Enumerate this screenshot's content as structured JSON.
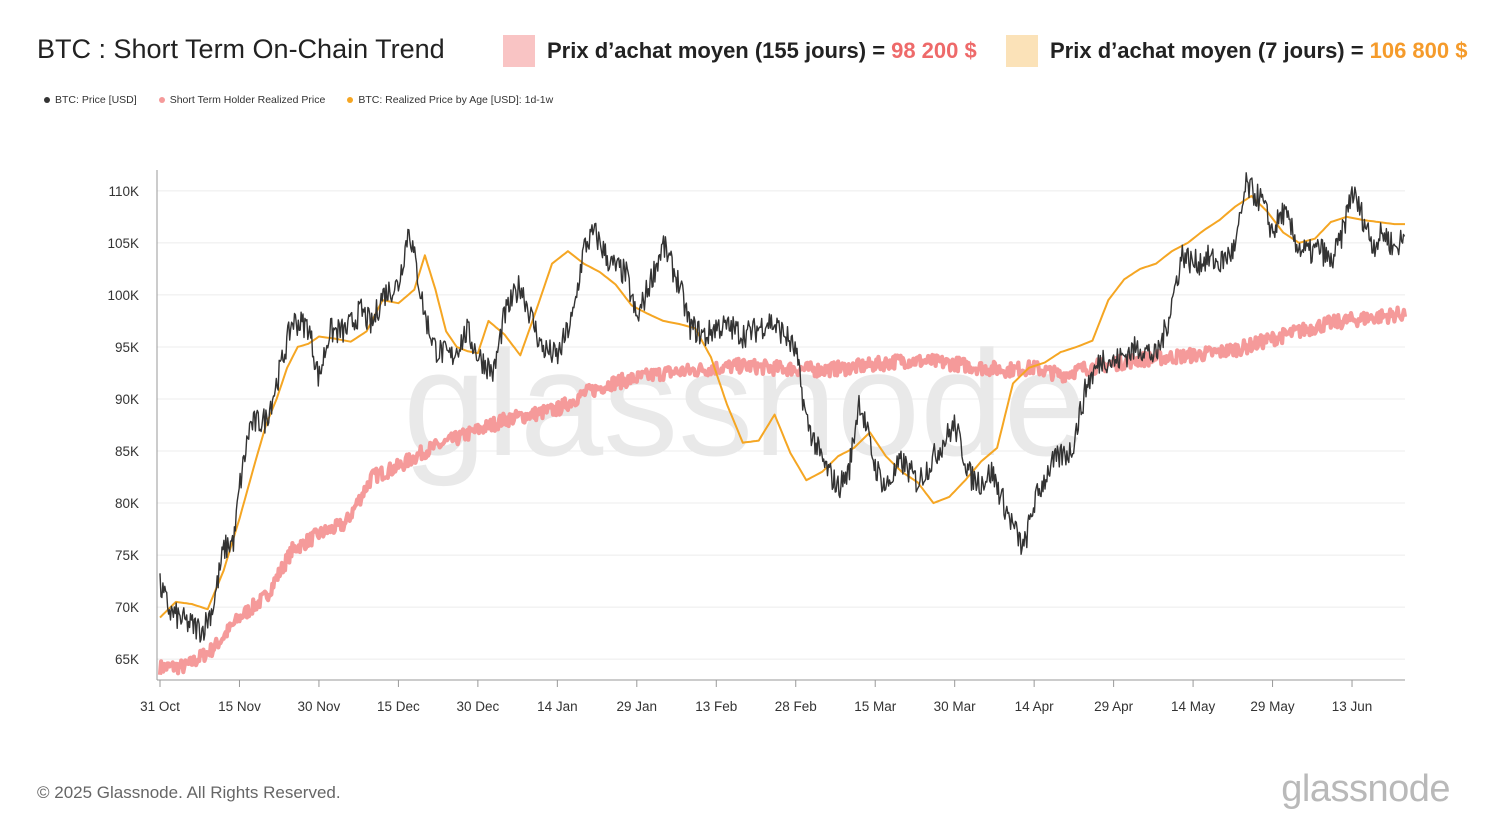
{
  "header": {
    "title": "BTC : Short Term On-Chain Trend",
    "key_155": {
      "label": "Prix d’achat moyen (155 jours) =",
      "value": "98 200 $",
      "swatch_color": "#f9c4c4",
      "value_color": "#ee6a6a"
    },
    "key_7": {
      "label": "Prix d’achat moyen (7 jours) =",
      "value": "106 800 $",
      "swatch_color": "#fbe2b8",
      "value_color": "#f59b2b"
    }
  },
  "legend": [
    {
      "label": "BTC: Price [USD]",
      "color": "#333333"
    },
    {
      "label": "Short Term Holder Realized Price",
      "color": "#f59a9a"
    },
    {
      "label": "BTC: Realized Price by Age [USD]: 1d-1w",
      "color": "#f5a623"
    }
  ],
  "watermark": "glassnode",
  "footer": {
    "copyright": "© 2025 Glassnode. All Rights Reserved.",
    "brand": "glassnode"
  },
  "chart_data": {
    "type": "line",
    "x_ticks": [
      "31 Oct",
      "15 Nov",
      "30 Nov",
      "15 Dec",
      "30 Dec",
      "14 Jan",
      "29 Jan",
      "13 Feb",
      "28 Feb",
      "15 Mar",
      "30 Mar",
      "14 Apr",
      "29 Apr",
      "14 May",
      "29 May",
      "13 Jun"
    ],
    "y_ticks": [
      "65K",
      "70K",
      "75K",
      "80K",
      "85K",
      "90K",
      "95K",
      "100K",
      "105K",
      "110K"
    ],
    "y_tick_values": [
      65000,
      70000,
      75000,
      80000,
      85000,
      90000,
      95000,
      100000,
      105000,
      110000
    ],
    "ylim": [
      63000,
      112000
    ],
    "x_range_days": [
      0,
      235
    ],
    "series": [
      {
        "name": "BTC: Price [USD]",
        "color": "#333333",
        "x": [
          0,
          2,
          5,
          8,
          10,
          12,
          14,
          15,
          17,
          20,
          22,
          25,
          28,
          30,
          32,
          35,
          38,
          40,
          42,
          45,
          47,
          50,
          52,
          55,
          58,
          60,
          63,
          65,
          68,
          72,
          75,
          78,
          80,
          82,
          85,
          88,
          90,
          92,
          95,
          98,
          100,
          103,
          105,
          108,
          110,
          112,
          115,
          118,
          120,
          122,
          125,
          128,
          130,
          132,
          135,
          137,
          140,
          143,
          145,
          148,
          150,
          153,
          155,
          157,
          160,
          163,
          165,
          168,
          170,
          172,
          175,
          178,
          180,
          183,
          185,
          188,
          190,
          193,
          195,
          198,
          200,
          203,
          205,
          208,
          210,
          212,
          215,
          217,
          219,
          221,
          223,
          225,
          227,
          229,
          231,
          233,
          235
        ],
        "y": [
          72000,
          69500,
          68500,
          67800,
          70000,
          75500,
          76500,
          81500,
          87500,
          88000,
          91500,
          97500,
          97000,
          92000,
          96500,
          96500,
          98500,
          97000,
          100000,
          101000,
          106500,
          98000,
          94800,
          94000,
          96500,
          94200,
          92500,
          98000,
          101000,
          95000,
          94000,
          98000,
          104500,
          106000,
          103000,
          102000,
          97500,
          100500,
          104800,
          101000,
          97000,
          96000,
          97000,
          96800,
          96200,
          96500,
          97500,
          96200,
          94500,
          88000,
          84000,
          81500,
          83000,
          90000,
          83500,
          81500,
          84000,
          82000,
          83500,
          86000,
          87500,
          82500,
          82000,
          83000,
          79000,
          75500,
          80000,
          83500,
          84500,
          85000,
          91500,
          94000,
          93500,
          94500,
          95000,
          94000,
          97000,
          104000,
          103000,
          103500,
          103000,
          104500,
          110500,
          109000,
          106000,
          108000,
          104500,
          104000,
          104500,
          103000,
          105500,
          110000,
          107500,
          104800,
          106000,
          104500,
          105500
        ]
      },
      {
        "name": "Short Term Holder Realized Price",
        "color": "#f59a9a",
        "x": [
          0,
          5,
          10,
          15,
          20,
          25,
          30,
          35,
          40,
          45,
          50,
          55,
          60,
          65,
          70,
          75,
          80,
          85,
          90,
          95,
          100,
          105,
          110,
          115,
          120,
          125,
          130,
          135,
          140,
          145,
          150,
          155,
          160,
          165,
          170,
          175,
          180,
          185,
          190,
          195,
          200,
          205,
          210,
          215,
          220,
          225,
          230,
          235
        ],
        "y": [
          64200,
          64300,
          66000,
          69000,
          71000,
          75500,
          77000,
          78000,
          82500,
          83500,
          85000,
          86000,
          87000,
          88000,
          88500,
          89000,
          90500,
          91500,
          92000,
          92500,
          92700,
          93000,
          93200,
          93000,
          92900,
          92800,
          93000,
          93300,
          93700,
          93600,
          93400,
          93000,
          92800,
          93000,
          92300,
          93000,
          93400,
          93800,
          94000,
          94200,
          94500,
          95000,
          95800,
          96500,
          97200,
          97600,
          97900,
          98200
        ]
      },
      {
        "name": "BTC: Realized Price by Age [USD]: 1d-1w",
        "color": "#f5a623",
        "x": [
          0,
          3,
          6,
          9,
          12,
          15,
          18,
          20,
          22,
          24,
          26,
          28,
          30,
          33,
          36,
          39,
          42,
          45,
          48,
          50,
          52,
          54,
          56,
          58,
          60,
          62,
          65,
          68,
          71,
          74,
          77,
          80,
          83,
          86,
          89,
          92,
          95,
          98,
          101,
          104,
          107,
          110,
          113,
          116,
          119,
          122,
          125,
          128,
          131,
          134,
          137,
          140,
          143,
          146,
          149,
          152,
          155,
          158,
          161,
          164,
          167,
          170,
          173,
          176,
          179,
          182,
          185,
          188,
          191,
          194,
          197,
          200,
          203,
          206,
          209,
          212,
          215,
          218,
          221,
          224,
          227,
          230,
          233,
          235
        ],
        "y": [
          69000,
          70500,
          70300,
          69800,
          73500,
          78500,
          84000,
          87500,
          90000,
          93000,
          95000,
          95300,
          96000,
          95800,
          95500,
          96500,
          99500,
          99200,
          100500,
          103800,
          100500,
          96500,
          95000,
          94600,
          94400,
          97500,
          96200,
          94200,
          98500,
          103000,
          104200,
          103000,
          102200,
          101000,
          99000,
          98200,
          97500,
          97200,
          96800,
          94000,
          89500,
          85800,
          86000,
          88500,
          84800,
          82200,
          83000,
          84500,
          85300,
          86800,
          84500,
          83000,
          82000,
          80000,
          80600,
          82200,
          84000,
          85300,
          91500,
          93000,
          93500,
          94500,
          95000,
          95600,
          99500,
          101500,
          102500,
          103000,
          104200,
          105000,
          106200,
          107200,
          108500,
          109500,
          108000,
          106000,
          105000,
          105400,
          107000,
          107500,
          107200,
          107000,
          106800,
          106800
        ]
      }
    ]
  }
}
